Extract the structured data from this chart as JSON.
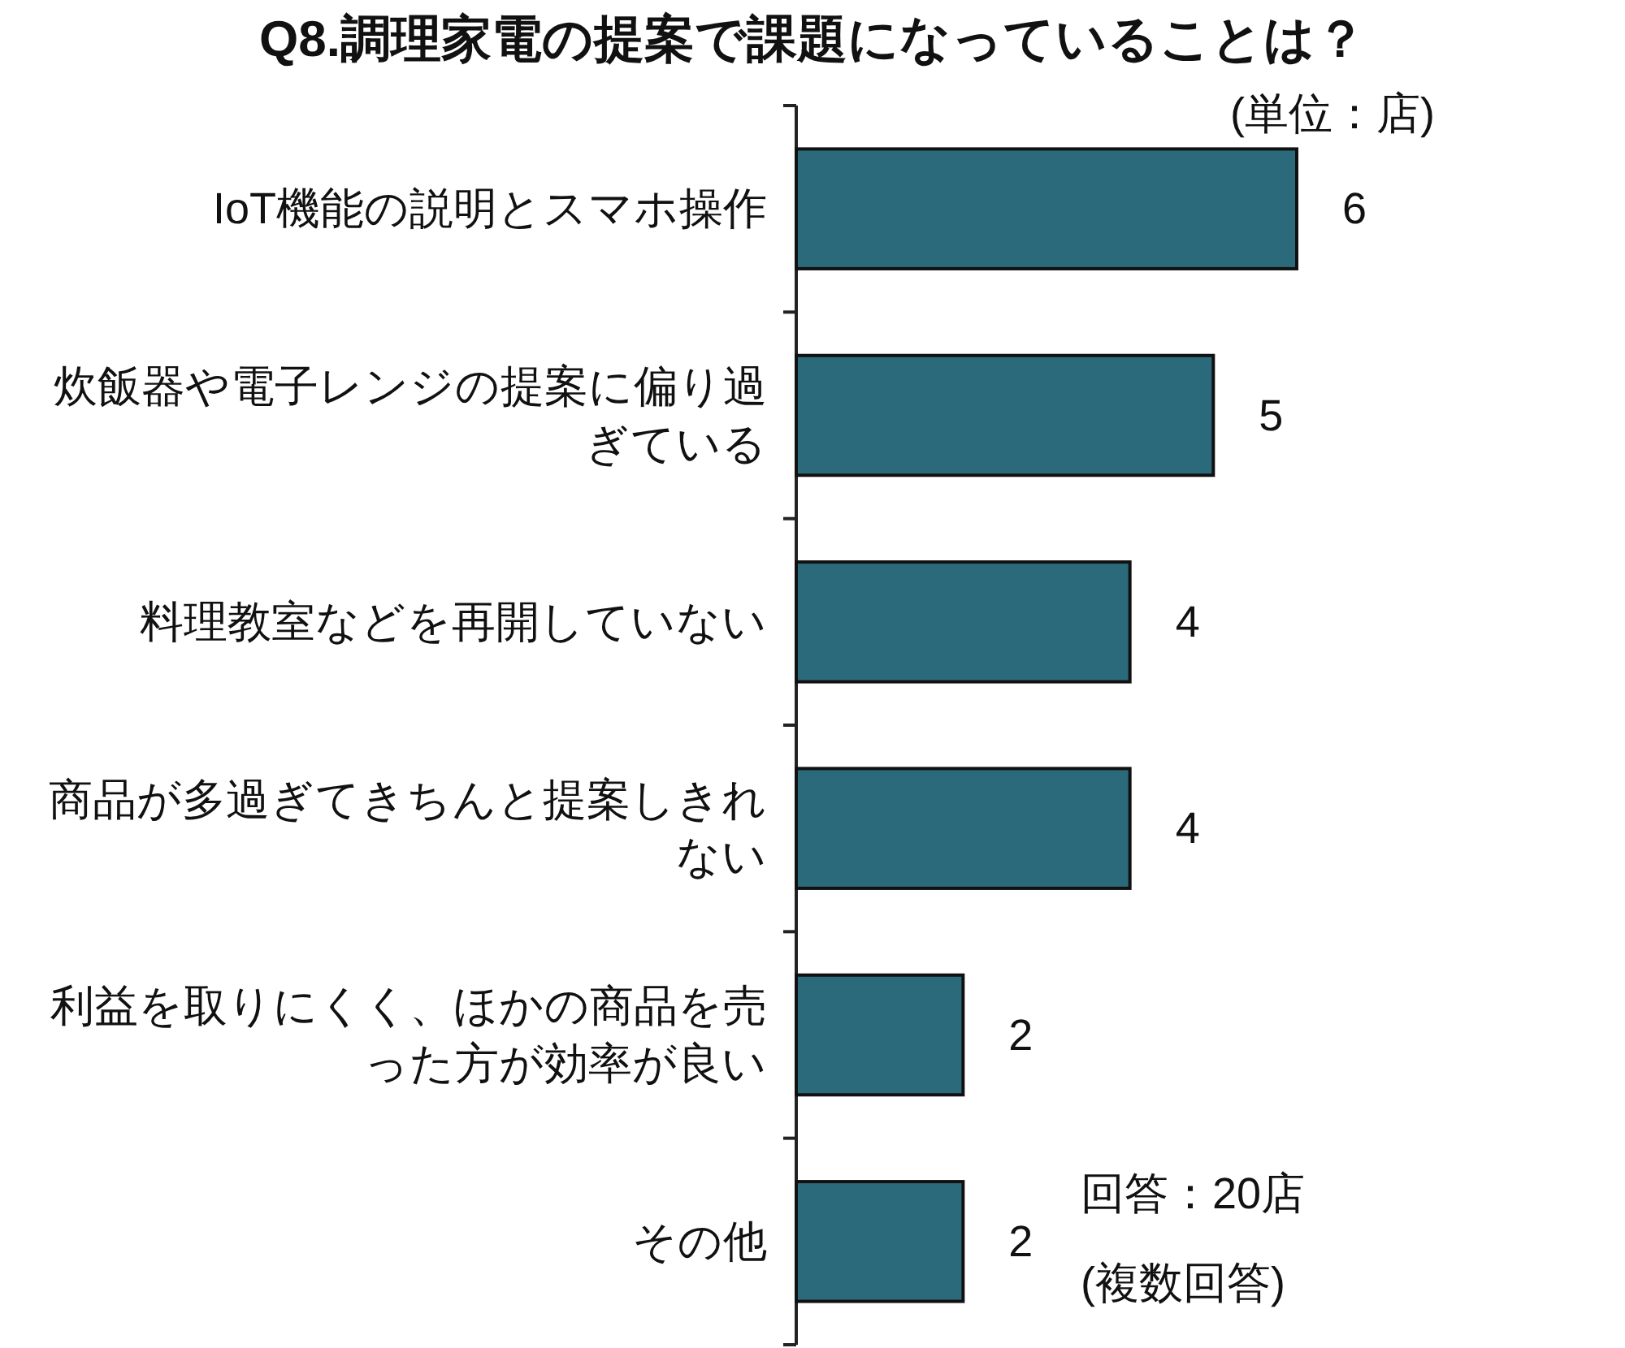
{
  "chart_data": {
    "type": "bar",
    "orientation": "horizontal",
    "title": "Q8.調理家電の提案で課題になっていることは？",
    "categories": [
      "IoT機能の説明とスマホ操作",
      "炊飯器や電子レンジの提案に偏り過ぎている",
      "料理教室などを再開していない",
      "商品が多過ぎてきちんと提案しきれない",
      "利益を取りにくく、ほかの商品を売った方が効率が良い",
      "その他"
    ],
    "values": [
      6,
      5,
      4,
      4,
      2,
      2
    ],
    "color": "#2b6a7b",
    "data_labels": true,
    "annotations": [
      "(単位：店)",
      "回答：20店",
      "(複数回答)"
    ]
  }
}
